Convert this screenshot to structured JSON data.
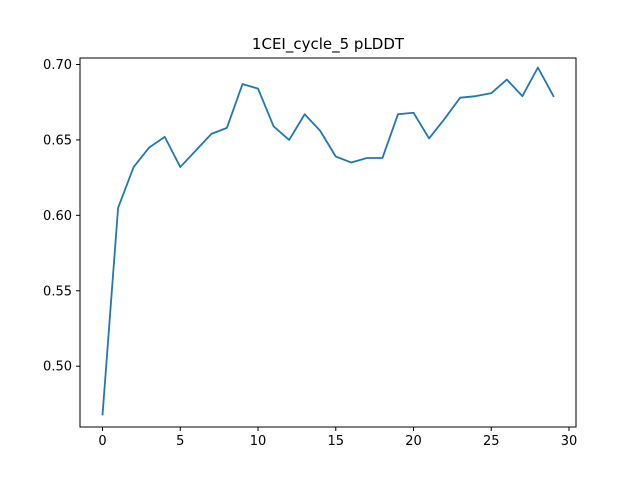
{
  "chart_data": {
    "type": "line",
    "title": "1CEI_cycle_5 pLDDT",
    "xlabel": "",
    "ylabel": "",
    "xlim": [
      -1.45,
      30.45
    ],
    "ylim": [
      0.4597,
      0.7043
    ],
    "x_ticks": [
      0,
      5,
      10,
      15,
      20,
      25,
      30
    ],
    "y_ticks": [
      0.5,
      0.55,
      0.6,
      0.65,
      0.7
    ],
    "x_tick_labels": [
      "0",
      "5",
      "10",
      "15",
      "20",
      "25",
      "30"
    ],
    "y_tick_labels": [
      "0.50",
      "0.55",
      "0.60",
      "0.65",
      "0.70"
    ],
    "grid": false,
    "legend": false,
    "series": [
      {
        "color": "#1f77b4",
        "x": [
          0,
          1,
          2,
          3,
          4,
          5,
          6,
          7,
          8,
          9,
          10,
          11,
          12,
          13,
          14,
          15,
          16,
          17,
          18,
          19,
          20,
          21,
          22,
          23,
          24,
          25,
          26,
          27,
          28,
          29
        ],
        "values": [
          0.468,
          0.605,
          0.632,
          0.645,
          0.652,
          0.632,
          0.643,
          0.654,
          0.658,
          0.687,
          0.684,
          0.659,
          0.65,
          0.667,
          0.656,
          0.639,
          0.635,
          0.638,
          0.638,
          0.667,
          0.668,
          0.651,
          0.664,
          0.678,
          0.679,
          0.681,
          0.69,
          0.679,
          0.698,
          0.679
        ]
      }
    ]
  }
}
